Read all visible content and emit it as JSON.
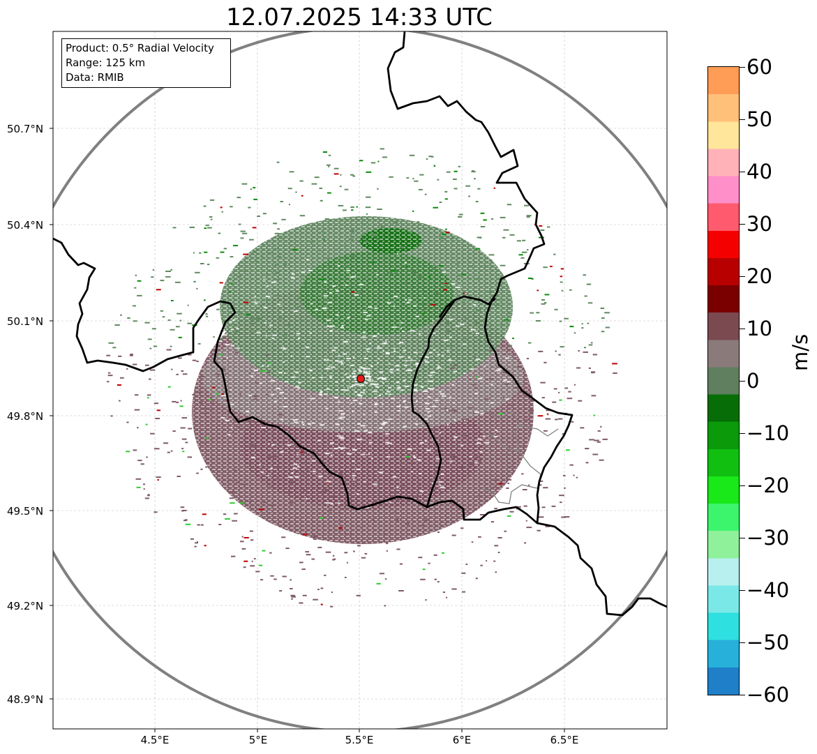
{
  "title": "12.07.2025 14:33 UTC",
  "info_box": {
    "product": "Product: 0.5° Radial Velocity",
    "range": "Range: 125 km",
    "data": "Data: RMIB"
  },
  "axes": {
    "lat_labels": [
      "50.7°N",
      "50.4°N",
      "50.1°N",
      "49.8°N",
      "49.5°N",
      "49.2°N",
      "48.9°N"
    ],
    "lon_labels": [
      "4.5°E",
      "5°E",
      "5.5°E",
      "6°E",
      "6.5°E"
    ],
    "grid": "dashed light gray"
  },
  "radar_site": {
    "lon": 5.5,
    "lat": 49.91,
    "color": "#e41a1c"
  },
  "colorbar": {
    "label": "m/s",
    "ticks": [
      "60",
      "50",
      "40",
      "30",
      "20",
      "10",
      "0",
      "−10",
      "−20",
      "−30",
      "−40",
      "−50",
      "−60"
    ],
    "range": [
      -60,
      60
    ],
    "colors": [
      "#1f7fc9",
      "#27b0d9",
      "#2ee0e0",
      "#7be8e8",
      "#b8efef",
      "#8ff29b",
      "#3df56d",
      "#19e819",
      "#10bf10",
      "#0a9a0a",
      "#076d07",
      "#5f7f5f",
      "#8a7a7a",
      "#7a4a50",
      "#7a0000",
      "#b80000",
      "#f50000",
      "#ff5a6e",
      "#ff8fc8",
      "#ffb3b8",
      "#ffe69a",
      "#ffc07a",
      "#ff9c55"
    ]
  },
  "colors": {
    "range_ring": "#808080",
    "border": "#000000",
    "province_border": "#808080",
    "approaching": "#5e8a5e",
    "receding": "#805058"
  }
}
